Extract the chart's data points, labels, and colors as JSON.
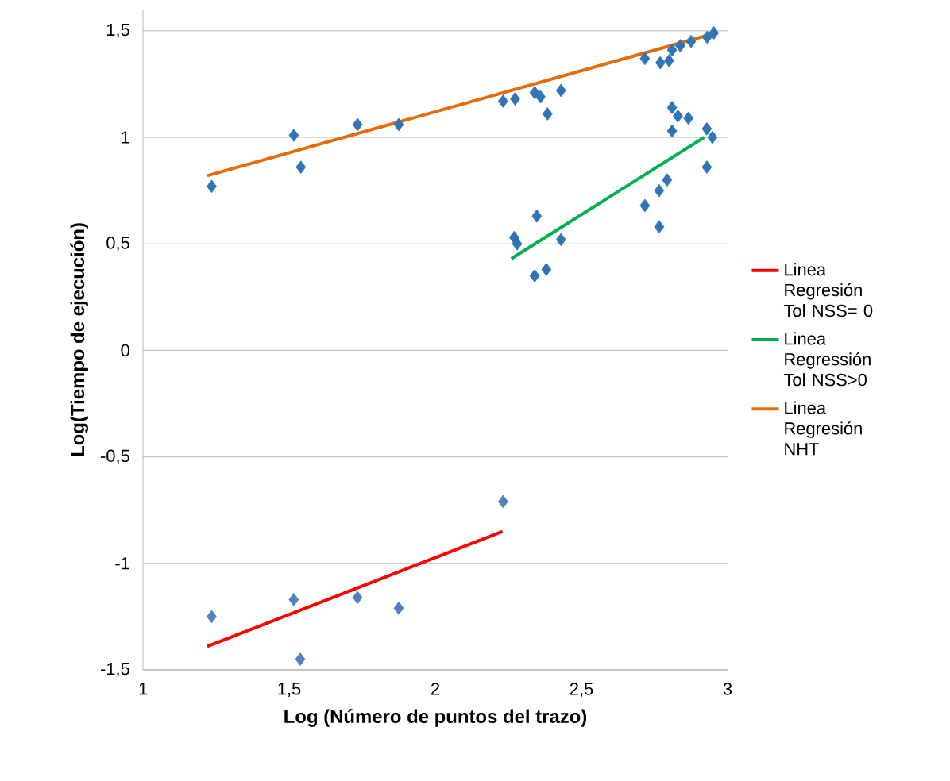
{
  "chart_data": {
    "type": "scatter",
    "xlabel": "Log (Número de puntos del trazo)",
    "ylabel": "Log(Tiempo de ejecución)",
    "xlim": [
      1,
      3
    ],
    "xticks": [
      1,
      {
        "value": 1.5,
        "label": "1,5"
      },
      2,
      {
        "value": 2.5,
        "label": "2,5"
      },
      3
    ],
    "ylim": [
      -1.5,
      1.6
    ],
    "yticks": [
      {
        "value": -1.5,
        "label": "-1,5"
      },
      {
        "value": -1,
        "label": "-1"
      },
      {
        "value": -0.5,
        "label": "-0,5"
      },
      0,
      {
        "value": 0.5,
        "label": "0,5"
      },
      1,
      {
        "value": 1.5,
        "label": "1,5"
      }
    ],
    "grid": "y",
    "legend": "right",
    "series": [
      {
        "marker": "diamond",
        "color": "#2e75b6",
        "x": [
          1.235,
          1.516,
          1.54,
          1.734,
          1.875,
          2.232,
          2.273,
          2.34,
          2.36,
          2.384,
          2.43,
          2.717,
          2.77,
          2.8,
          2.81,
          2.838,
          2.875,
          2.93,
          2.953,
          2.81,
          2.83,
          2.866,
          2.81,
          2.929,
          2.948,
          2.929,
          2.793,
          2.766,
          2.717,
          2.766,
          2.27,
          2.28,
          2.347,
          2.43,
          2.34,
          2.38
        ],
        "values": [
          0.77,
          1.01,
          0.86,
          1.06,
          1.06,
          1.17,
          1.18,
          1.21,
          1.19,
          1.11,
          1.22,
          1.37,
          1.35,
          1.36,
          1.41,
          1.43,
          1.45,
          1.47,
          1.49,
          1.14,
          1.1,
          1.09,
          1.03,
          1.04,
          1.0,
          0.86,
          0.8,
          0.75,
          0.68,
          0.58,
          0.53,
          0.5,
          0.63,
          0.52,
          0.35,
          0.38
        ]
      },
      {
        "marker": "diamond",
        "color": "#4f81bd",
        "x": [
          1.235,
          1.516,
          1.538,
          1.734,
          1.875,
          2.232
        ],
        "values": [
          -1.25,
          -1.17,
          -1.45,
          -1.16,
          -1.21,
          -0.71
        ]
      },
      {
        "type": "line",
        "marker": "none",
        "name": "Linea Regresión Tol NSS= 0",
        "color": "#ff0000",
        "x": [
          1.22,
          2.23
        ],
        "values": [
          -1.39,
          -0.85
        ]
      },
      {
        "type": "line",
        "marker": "none",
        "name": "Linea Regressión Tol NSS>0",
        "color": "#00b050",
        "x": [
          2.26,
          2.92
        ],
        "values": [
          0.43,
          1.0
        ]
      },
      {
        "type": "line",
        "marker": "none",
        "name": "Linea Regresión NHT",
        "color": "#e46c0a",
        "x": [
          1.22,
          2.96
        ],
        "values": [
          0.82,
          1.49
        ]
      }
    ]
  }
}
